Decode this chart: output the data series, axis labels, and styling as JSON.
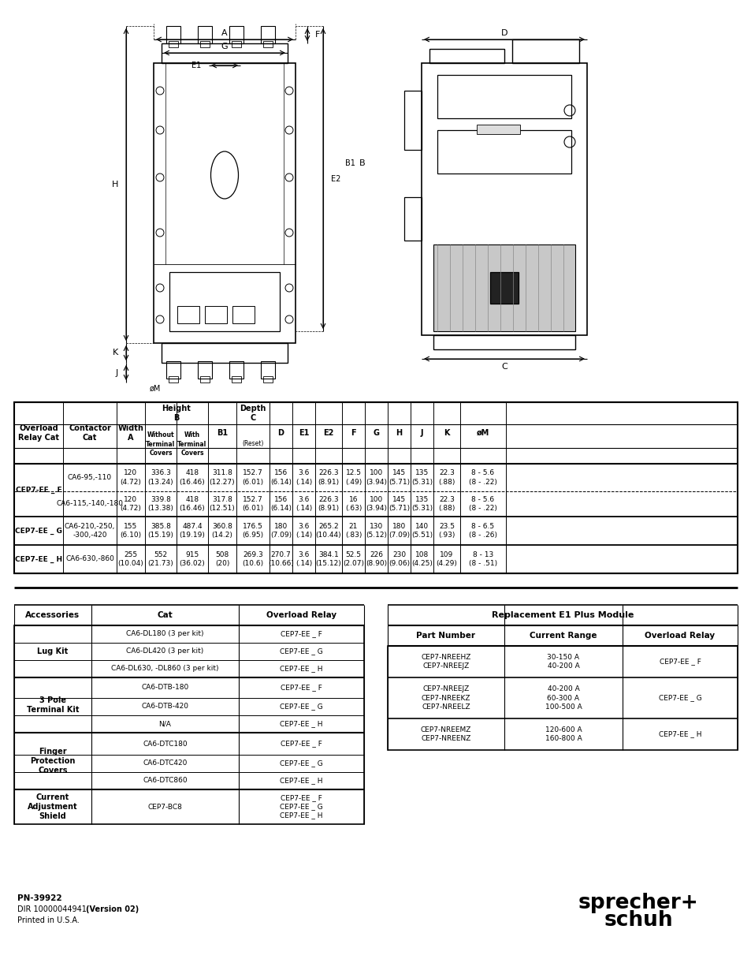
{
  "bg_color": "#ffffff",
  "main_table_data": [
    [
      "CEP7-EE _ F",
      "CA6-95,-110",
      "120\n(4.72)",
      "336.3\n(13.24)",
      "418\n(16.46)",
      "311.8\n(12.27)",
      "152.7\n(6.01)",
      "156\n(6.14)",
      "3.6\n(.14)",
      "226.3\n(8.91)",
      "12.5\n(.49)",
      "100\n(3.94)",
      "145\n(5.71)",
      "135\n(5.31)",
      "22.3\n(.88)",
      "8 - 5.6\n(8 - .22)"
    ],
    [
      "",
      "CA6-115,-140,-180",
      "120\n(4.72)",
      "339.8\n(13.38)",
      "418\n(16.46)",
      "317.8\n(12.51)",
      "152.7\n(6.01)",
      "156\n(6.14)",
      "3.6\n(.14)",
      "226.3\n(8.91)",
      "16\n(.63)",
      "100\n(3.94)",
      "145\n(5.71)",
      "135\n(5.31)",
      "22.3\n(.88)",
      "8 - 5.6\n(8 - .22)"
    ],
    [
      "CEP7-EE _ G",
      "CA6-210,-250,\n-300,-420",
      "155\n(6.10)",
      "385.8\n(15.19)",
      "487.4\n(19.19)",
      "360.8\n(14.2)",
      "176.5\n(6.95)",
      "180\n(7.09)",
      "3.6\n(.14)",
      "265.2\n(10.44)",
      "21\n(.83)",
      "130\n(5.12)",
      "180\n(7.09)",
      "140\n(5.51)",
      "23.5\n(.93)",
      "8 - 6.5\n(8 - .26)"
    ],
    [
      "CEP7-EE _ H",
      "CA6-630,-860",
      "255\n(10.04)",
      "552\n(21.73)",
      "915\n(36.02)",
      "508\n(20)",
      "269.3\n(10.6)",
      "270.7\n(10.66)",
      "3.6\n(.14)",
      "384.1\n(15.12)",
      "52.5\n(2.07)",
      "226\n(8.90)",
      "230\n(9.06)",
      "108\n(4.25)",
      "109\n(4.29)",
      "8 - 13\n(8 - .51)"
    ]
  ],
  "acc_groups": [
    {
      "label": "Lug Kit",
      "rows": [
        {
          "cat": "CA6-DL180 (3 per kit)",
          "relay": "CEP7-EE _ F"
        },
        {
          "cat": "CA6-DL420 (3 per kit)",
          "relay": "CEP7-EE _ G"
        },
        {
          "cat": "CA6-DL630, -DL860 (3 per kit)",
          "relay": "CEP7-EE _ H"
        }
      ]
    },
    {
      "label": "3 Pole\nTerminal Kit",
      "rows": [
        {
          "cat": "CA6-DTB-180",
          "relay": "CEP7-EE _ F"
        },
        {
          "cat": "CA6-DTB-420",
          "relay": "CEP7-EE _ G"
        },
        {
          "cat": "N/A",
          "relay": "CEP7-EE _ H"
        }
      ]
    },
    {
      "label": "Finger\nProtection\nCovers",
      "rows": [
        {
          "cat": "CA6-DTC180",
          "relay": "CEP7-EE _ F"
        },
        {
          "cat": "CA6-DTC420",
          "relay": "CEP7-EE _ G"
        },
        {
          "cat": "CA6-DTC860",
          "relay": "CEP7-EE _ H"
        }
      ]
    },
    {
      "label": "Current\nAdjustment\nShield",
      "rows": [
        {
          "cat": "CEP7-BC8",
          "relay": "CEP7-EE _ F\nCEP7-EE _ G\nCEP7-EE _ H"
        }
      ]
    }
  ],
  "e1_groups": [
    {
      "parts": [
        "CEP7-NREEHZ",
        "CEP7-NREEJZ"
      ],
      "ranges": [
        "30-150 A",
        "40-200 A"
      ],
      "relay": "CEP7-EE _ F"
    },
    {
      "parts": [
        "CEP7-NREEJZ",
        "CEP7-NREEKZ",
        "CEP7-NREELZ"
      ],
      "ranges": [
        "40-200 A",
        "60-300 A",
        "100-500 A"
      ],
      "relay": "CEP7-EE _ G"
    },
    {
      "parts": [
        "CEP7-NREEMZ",
        "CEP7-NREENZ"
      ],
      "ranges": [
        "120-600 A",
        "160-800 A"
      ],
      "relay": "CEP7-EE _ H"
    }
  ],
  "footer_line1": "PN-39922",
  "footer_line2": "DIR 10000044941 (Version 02)",
  "footer_line3": "Printed in U.S.A.",
  "brand_line1": "sprecher+",
  "brand_line2": "schuh"
}
